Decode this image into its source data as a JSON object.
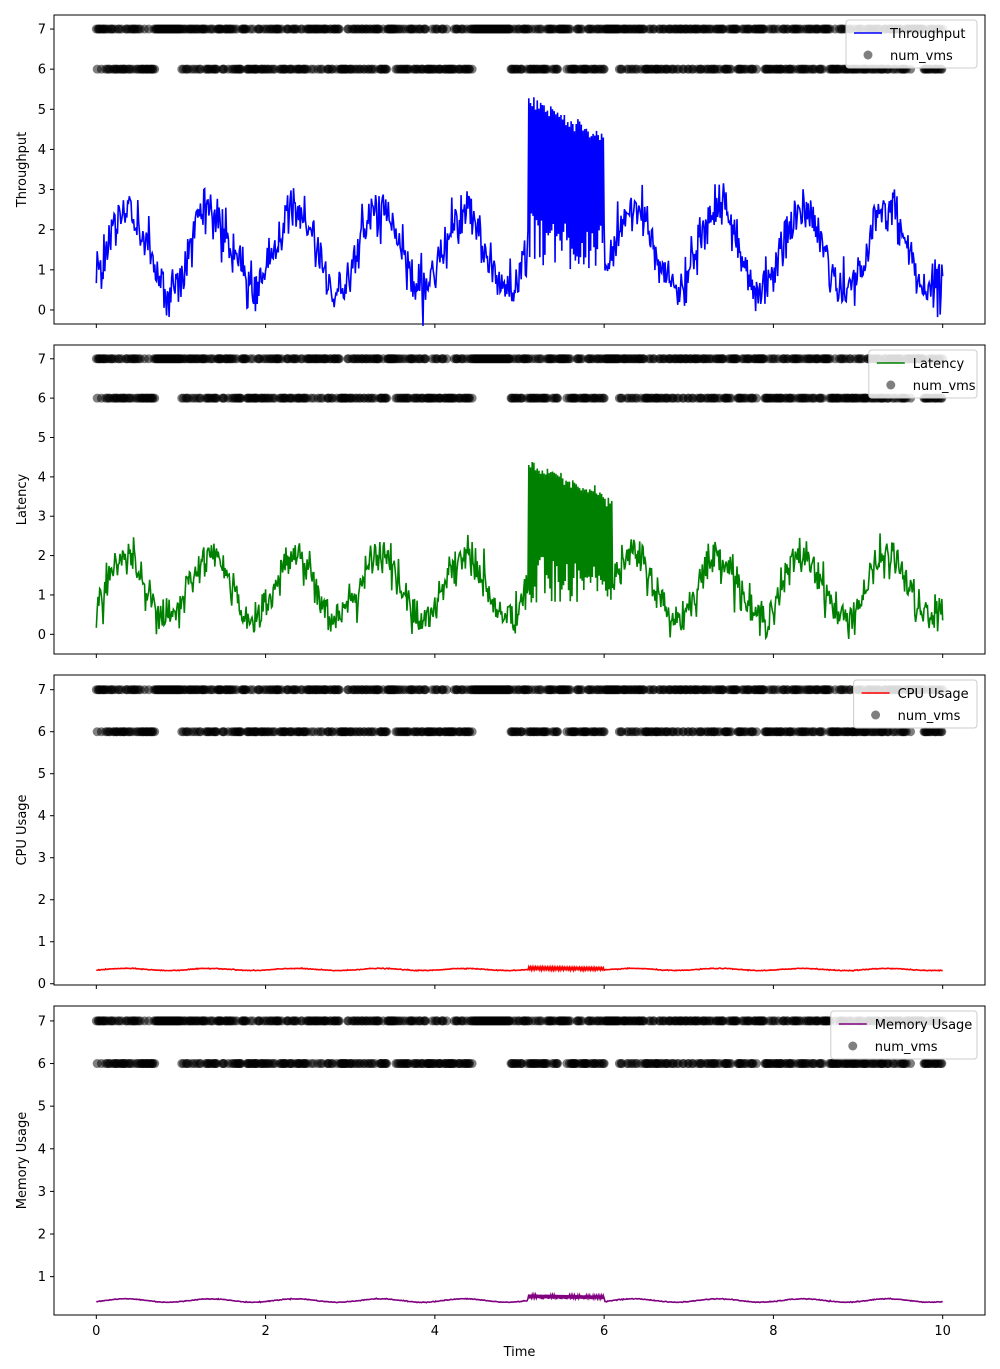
{
  "chart_data": {
    "type": "line",
    "shared_x": true,
    "xlim": [
      -0.5,
      10.5
    ],
    "xticks": [
      0,
      2,
      4,
      6,
      8,
      10
    ],
    "xlabel": "Time",
    "scatter_series": {
      "name": "num_vms",
      "color": "#000000",
      "alpha": 0.5,
      "levels": [
        6,
        7
      ],
      "note_values": "Each time step 0..10 (step 0.01) has num_vms of 6 or 7; gaps visible at level 6 around t=0.7-1.0, 4.5-4.9, 5.5, 6.0-6.2, 9.6-9.8"
    },
    "panels": [
      {
        "name": "Throughput",
        "color": "#0000ff",
        "ylabel": "Throughput",
        "ylim": [
          -0.35,
          7.35
        ],
        "yticks": [
          0,
          1,
          2,
          3,
          4,
          5,
          6,
          7
        ],
        "legend": [
          "Throughput",
          "num_vms"
        ],
        "baseline": 1.5,
        "amplitude": 1.0,
        "noise": 0.3,
        "anomaly": {
          "start": 5.1,
          "end": 6.0,
          "low": 1.0,
          "high": 5.3
        }
      },
      {
        "name": "Latency",
        "color": "#008000",
        "ylabel": "Latency",
        "ylim": [
          -0.5,
          7.35
        ],
        "yticks": [
          0,
          1,
          2,
          3,
          4,
          5,
          6,
          7
        ],
        "legend": [
          "Latency",
          "num_vms"
        ],
        "baseline": 1.2,
        "amplitude": 0.8,
        "noise": 0.25,
        "anomaly": {
          "start": 5.1,
          "end": 6.1,
          "low": 0.8,
          "high": 4.3
        }
      },
      {
        "name": "CPU Usage",
        "color": "#ff0000",
        "ylabel": "CPU Usage",
        "ylim": [
          -0.03,
          7.35
        ],
        "yticks": [
          0,
          1,
          2,
          3,
          4,
          5,
          6,
          7
        ],
        "legend": [
          "CPU Usage",
          "num_vms"
        ],
        "baseline": 0.34,
        "amplitude": 0.025,
        "noise": 0.005,
        "anomaly": {
          "start": 5.1,
          "end": 6.0,
          "low": 0.32,
          "high": 0.4
        }
      },
      {
        "name": "Memory Usage",
        "color": "#800080",
        "ylabel": "Memory Usage",
        "ylim": [
          0.1,
          7.35
        ],
        "yticks": [
          1,
          2,
          3,
          4,
          5,
          6,
          7
        ],
        "legend": [
          "Memory Usage",
          "num_vms"
        ],
        "baseline": 0.44,
        "amplitude": 0.04,
        "noise": 0.005,
        "anomaly": {
          "start": 5.1,
          "end": 6.0,
          "low": 0.47,
          "high": 0.58
        }
      }
    ]
  }
}
